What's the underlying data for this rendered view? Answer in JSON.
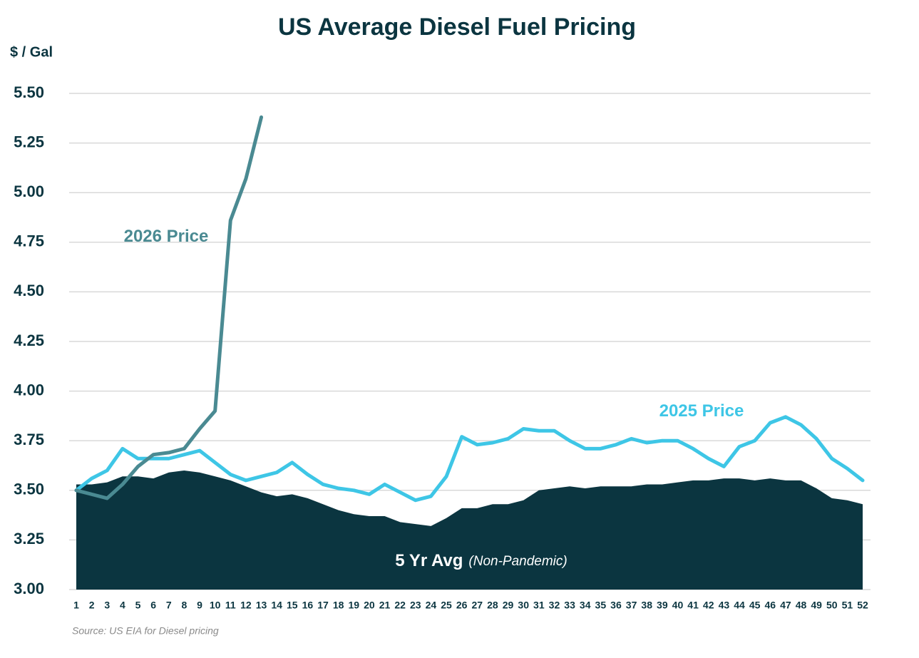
{
  "chart_data": {
    "type": "line",
    "title": "US Average Diesel Fuel Pricing",
    "y_label": "$ / Gal",
    "source": "Source:  US EIA for Diesel pricing",
    "categories": [
      "1",
      "2",
      "3",
      "4",
      "5",
      "6",
      "7",
      "8",
      "9",
      "10",
      "11",
      "12",
      "13",
      "14",
      "15",
      "16",
      "17",
      "18",
      "19",
      "20",
      "21",
      "22",
      "23",
      "24",
      "25",
      "26",
      "27",
      "28",
      "29",
      "30",
      "31",
      "32",
      "33",
      "34",
      "35",
      "36",
      "37",
      "38",
      "39",
      "40",
      "41",
      "42",
      "43",
      "44",
      "45",
      "46",
      "47",
      "48",
      "49",
      "50",
      "51",
      "52"
    ],
    "series": [
      {
        "name": "5 Yr Avg",
        "name_note": "(Non-Pandemic)",
        "kind": "area",
        "color": "#0b3540",
        "values": [
          3.53,
          3.53,
          3.54,
          3.57,
          3.57,
          3.56,
          3.59,
          3.6,
          3.59,
          3.57,
          3.55,
          3.52,
          3.49,
          3.47,
          3.48,
          3.46,
          3.43,
          3.4,
          3.38,
          3.37,
          3.37,
          3.34,
          3.33,
          3.32,
          3.36,
          3.41,
          3.41,
          3.43,
          3.43,
          3.45,
          3.5,
          3.51,
          3.52,
          3.51,
          3.52,
          3.52,
          3.52,
          3.53,
          3.53,
          3.54,
          3.55,
          3.55,
          3.56,
          3.56,
          3.55,
          3.56,
          3.55,
          3.55,
          3.51,
          3.46,
          3.45,
          3.43
        ]
      },
      {
        "name": "2025 Price",
        "kind": "line",
        "color": "#3ec6e6",
        "values": [
          3.5,
          3.56,
          3.6,
          3.71,
          3.66,
          3.66,
          3.66,
          3.68,
          3.7,
          3.64,
          3.58,
          3.55,
          3.57,
          3.59,
          3.64,
          3.58,
          3.53,
          3.51,
          3.5,
          3.48,
          3.53,
          3.49,
          3.45,
          3.47,
          3.57,
          3.77,
          3.73,
          3.74,
          3.76,
          3.81,
          3.8,
          3.8,
          3.75,
          3.71,
          3.71,
          3.73,
          3.76,
          3.74,
          3.75,
          3.75,
          3.71,
          3.66,
          3.62,
          3.72,
          3.75,
          3.84,
          3.87,
          3.83,
          3.76,
          3.66,
          3.61,
          3.55
        ]
      },
      {
        "name": "2026 Price",
        "kind": "line",
        "color": "#4a8a92",
        "values": [
          3.5,
          3.48,
          3.46,
          3.53,
          3.62,
          3.68,
          3.69,
          3.71,
          3.81,
          3.9,
          4.86,
          5.07,
          5.38,
          null,
          null,
          null,
          null,
          null,
          null,
          null,
          null,
          null,
          null,
          null,
          null,
          null,
          null,
          null,
          null,
          null,
          null,
          null,
          null,
          null,
          null,
          null,
          null,
          null,
          null,
          null,
          null,
          null,
          null,
          null,
          null,
          null,
          null,
          null,
          null,
          null,
          null,
          null
        ]
      }
    ],
    "ylim": [
      3.0,
      5.5
    ],
    "yticks": [
      {
        "value": 3,
        "label": "3.00"
      },
      {
        "value": 3.25,
        "label": "3.25"
      },
      {
        "value": 3.5,
        "label": "3.50"
      },
      {
        "value": 3.75,
        "label": "3.75"
      },
      {
        "value": 4,
        "label": "4.00"
      },
      {
        "value": 4.25,
        "label": "4.25"
      },
      {
        "value": 4.5,
        "label": "4.50"
      },
      {
        "value": 4.75,
        "label": "4.75"
      },
      {
        "value": 5,
        "label": "5.00"
      },
      {
        "value": 5.25,
        "label": "5.25"
      },
      {
        "value": 5.5,
        "label": "5.50"
      }
    ],
    "grid": true
  }
}
